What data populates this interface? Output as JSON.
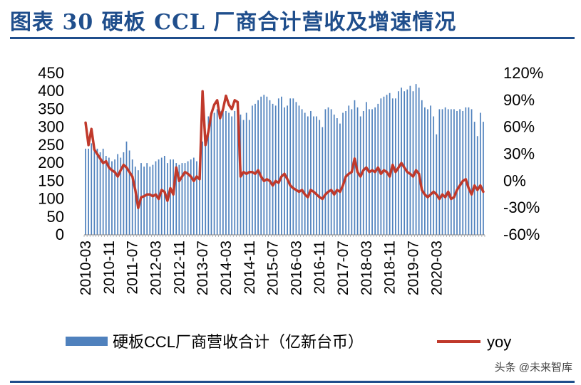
{
  "title": "图表 30 硬板 CCL 厂商合计营收及增速情况",
  "watermark": "头条 @未来智库",
  "colors": {
    "bar": "#4f81bd",
    "line": "#c0392b",
    "title": "#1f4e8c"
  },
  "chart_data": {
    "type": "bar",
    "title": "",
    "x_tick_labels": [
      "2010-03",
      "2010-11",
      "2011-07",
      "2012-03",
      "2012-11",
      "2013-07",
      "2014-03",
      "2014-11",
      "2015-07",
      "2016-03",
      "2016-11",
      "2017-07",
      "2018-03",
      "2018-11",
      "2019-07",
      "2020-03"
    ],
    "y_left_ticks": [
      "450",
      "400",
      "350",
      "300",
      "250",
      "200",
      "150",
      "100",
      "50",
      "0"
    ],
    "y_right_ticks": [
      "120%",
      "90%",
      "60%",
      "30%",
      "0%",
      "-30%",
      "-60%"
    ],
    "ylim_left": [
      0,
      450
    ],
    "ylim_right": [
      -0.6,
      1.2
    ],
    "legend": [
      "硬板CCL厂商营收合计（亿新台币）",
      "yoy"
    ],
    "legend_position": "bottom",
    "categories_start": "2010-03",
    "categories_end": "2020-04",
    "series": [
      {
        "name": "硬板CCL厂商营收合计（亿新台币）",
        "type": "bar",
        "axis": "left",
        "values": [
          240,
          240,
          255,
          245,
          240,
          230,
          240,
          220,
          215,
          205,
          210,
          225,
          215,
          230,
          260,
          235,
          210,
          190,
          180,
          200,
          190,
          200,
          190,
          195,
          205,
          210,
          215,
          220,
          200,
          210,
          210,
          200,
          195,
          200,
          200,
          205,
          210,
          215,
          205,
          200,
          260,
          270,
          330,
          340,
          340,
          350,
          345,
          350,
          345,
          340,
          330,
          345,
          330,
          335,
          320,
          340,
          320,
          360,
          365,
          375,
          385,
          390,
          385,
          375,
          365,
          360,
          380,
          385,
          355,
          360,
          380,
          380,
          370,
          360,
          350,
          340,
          330,
          345,
          330,
          330,
          320,
          300,
          350,
          355,
          350,
          335,
          325,
          310,
          340,
          345,
          360,
          350,
          375,
          355,
          330,
          345,
          370,
          350,
          350,
          355,
          365,
          380,
          385,
          390,
          395,
          380,
          380,
          400,
          410,
          400,
          405,
          415,
          400,
          420,
          410,
          375,
          355,
          350,
          360,
          330,
          280,
          350,
          350,
          355,
          350,
          350,
          350,
          345,
          350,
          345,
          355,
          355,
          350,
          315,
          275,
          340,
          315
        ]
      },
      {
        "name": "yoy",
        "type": "line",
        "axis": "right",
        "values": [
          0.65,
          0.4,
          0.58,
          0.35,
          0.3,
          0.25,
          0.2,
          0.22,
          0.15,
          0.12,
          0.1,
          0.05,
          0.12,
          0.18,
          0.15,
          0.1,
          0.05,
          -0.1,
          -0.3,
          -0.18,
          -0.17,
          -0.15,
          -0.15,
          -0.17,
          -0.15,
          -0.2,
          -0.1,
          -0.12,
          -0.22,
          -0.08,
          -0.15,
          0.15,
          0.0,
          0.05,
          0.1,
          0.08,
          0.05,
          0.0,
          0.05,
          0.02,
          1.0,
          0.4,
          0.55,
          0.75,
          0.85,
          0.9,
          0.7,
          0.8,
          0.95,
          0.85,
          0.8,
          0.9,
          0.88,
          0.05,
          0.1,
          0.08,
          0.1,
          0.1,
          0.08,
          0.12,
          0.05,
          0.0,
          0.02,
          0.0,
          -0.05,
          0.0,
          -0.02,
          0.05,
          0.08,
          0.02,
          -0.05,
          -0.08,
          -0.1,
          -0.12,
          -0.1,
          -0.15,
          -0.18,
          -0.1,
          -0.12,
          -0.15,
          -0.18,
          -0.2,
          -0.15,
          -0.12,
          -0.1,
          -0.15,
          -0.1,
          -0.12,
          -0.05,
          0.05,
          0.08,
          0.1,
          0.25,
          0.1,
          0.05,
          0.12,
          0.15,
          0.1,
          0.12,
          0.1,
          0.15,
          0.08,
          0.12,
          0.1,
          0.05,
          0.18,
          0.1,
          0.15,
          0.2,
          0.15,
          0.1,
          0.08,
          0.05,
          0.12,
          0.08,
          -0.1,
          -0.15,
          -0.18,
          -0.15,
          -0.12,
          -0.15,
          -0.2,
          -0.15,
          -0.18,
          -0.12,
          -0.2,
          -0.18,
          -0.1,
          -0.05,
          0.0,
          0.02,
          -0.08,
          -0.15,
          -0.05,
          -0.1,
          -0.05,
          -0.12
        ]
      }
    ]
  }
}
